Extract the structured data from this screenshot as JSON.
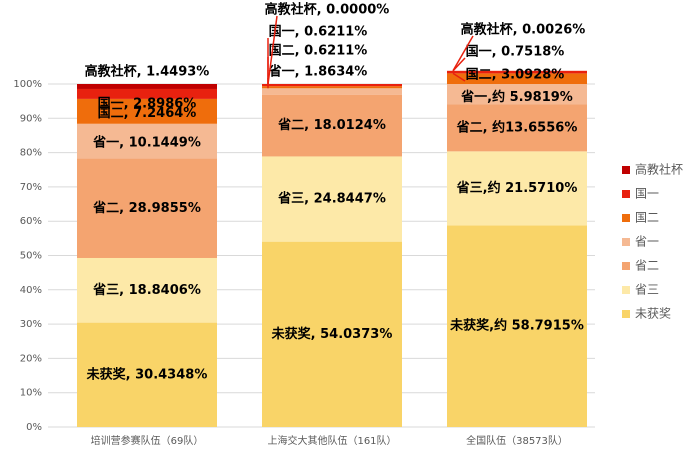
{
  "chart_data": {
    "type": "stacked_bar",
    "categories": [
      "培训营参赛队伍（69队）",
      "上海交大其他队伍（161队）",
      "全国队伍（38573队）"
    ],
    "series": [
      {
        "name": "未获奖",
        "color": "#f9d468",
        "values": [
          30.4348,
          54.0373,
          58.7915
        ],
        "value_labels": [
          "未获奖, 30.4348%",
          "未获奖, 54.0373%",
          "未获奖,约 58.7915%"
        ]
      },
      {
        "name": "省三",
        "color": "#fde9a8",
        "values": [
          18.8406,
          24.8447,
          21.571
        ],
        "value_labels": [
          "省三, 18.8406%",
          "省三, 24.8447%",
          "省三,约 21.5710%"
        ]
      },
      {
        "name": "省二",
        "color": "#f4a470",
        "values": [
          28.9855,
          18.0124,
          13.6556
        ],
        "value_labels": [
          "省二, 28.9855%",
          "省二, 18.0124%",
          "省二, 约13.6556%"
        ]
      },
      {
        "name": "省一",
        "color": "#f5b993",
        "values": [
          10.1449,
          1.8634,
          5.9819
        ],
        "value_labels": [
          "省一, 10.1449%",
          "省一, 1.8634%",
          "省一,约 5.9819%"
        ]
      },
      {
        "name": "国二",
        "color": "#ef6d0c",
        "values": [
          7.2464,
          0.6211,
          3.0928
        ],
        "value_labels": [
          "国二, 7.2464%",
          "国二, 0.6211%",
          "国二, 3.0928%"
        ]
      },
      {
        "name": "国一",
        "color": "#e8210f",
        "values": [
          2.8986,
          0.6211,
          0.7518
        ],
        "value_labels": [
          "国一, 2.8986%",
          "国一, 0.6211%",
          "国一, 0.7518%"
        ]
      },
      {
        "name": "高教社杯",
        "color": "#c00000",
        "values": [
          1.4493,
          0.0,
          0.0026
        ],
        "value_labels": [
          "高教社杯, 1.4493%",
          "高教社杯, 0.0000%",
          "高教社杯, 0.0026%"
        ]
      }
    ],
    "ylim": [
      0,
      100
    ],
    "yticks": [
      {
        "value": 0,
        "label": "0%"
      },
      {
        "value": 10,
        "label": "10%"
      },
      {
        "value": 20,
        "label": "20%"
      },
      {
        "value": 30,
        "label": "30%"
      },
      {
        "value": 40,
        "label": "40%"
      },
      {
        "value": 50,
        "label": "50%"
      },
      {
        "value": 60,
        "label": "60%"
      },
      {
        "value": 70,
        "label": "70%"
      },
      {
        "value": 80,
        "label": "80%"
      },
      {
        "value": 90,
        "label": "90%"
      },
      {
        "value": 100,
        "label": "100%"
      }
    ],
    "grid": true,
    "legend": "right"
  }
}
